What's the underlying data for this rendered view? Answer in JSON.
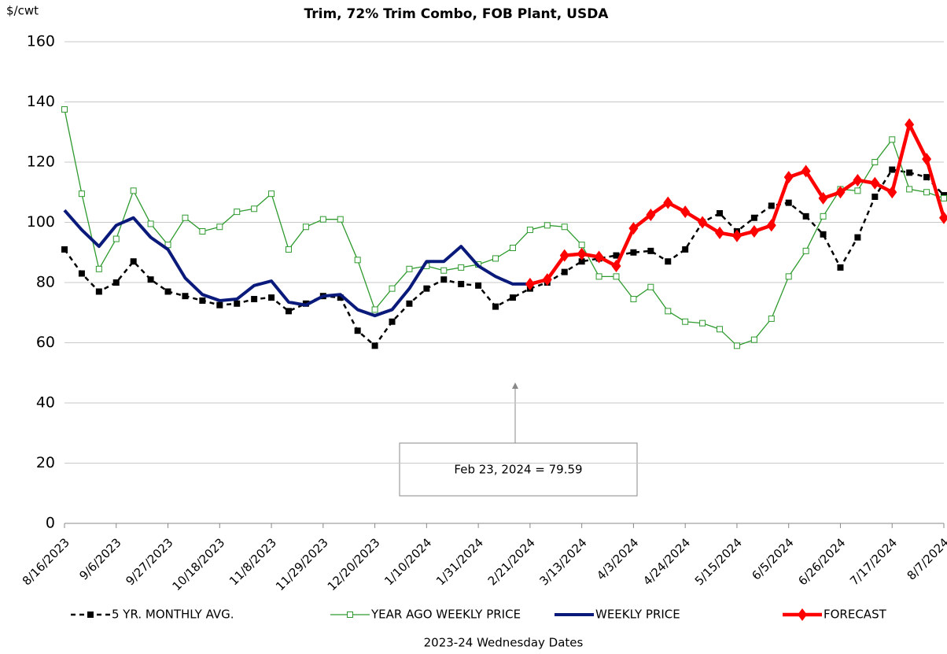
{
  "chart_data": {
    "type": "line",
    "title": "Trim, 72% Trim Combo, FOB Plant, USDA",
    "y_label": "$/cwt",
    "x_label": "2023-24 Wednesday Dates",
    "annotation": "Feb 23, 2024  = 79.59",
    "categories": [
      "8/16/2023",
      null,
      null,
      "9/6/2023",
      null,
      null,
      "9/27/2023",
      null,
      null,
      "10/18/2023",
      null,
      null,
      "11/8/2023",
      null,
      null,
      "11/29/2023",
      null,
      null,
      "12/20/2023",
      null,
      null,
      "1/10/2024",
      null,
      null,
      "1/31/2024",
      null,
      null,
      "2/21/2024",
      null,
      null,
      "3/13/2024",
      null,
      null,
      "4/3/2024",
      null,
      null,
      "4/24/2024",
      null,
      null,
      "5/15/2024",
      null,
      null,
      "6/5/2024",
      null,
      null,
      "6/26/2024",
      null,
      null,
      "7/17/2024",
      null,
      null,
      "8/7/2024"
    ],
    "series": [
      {
        "name": "5 YR. MONTHLY AVG.",
        "color": "#000000",
        "values": [
          91,
          83,
          77,
          80,
          87,
          81,
          77,
          75.5,
          74,
          72.5,
          73,
          74.5,
          75,
          70.5,
          73,
          75.5,
          75,
          64,
          59,
          67,
          73,
          78,
          81,
          79.5,
          79,
          72,
          75,
          78,
          80,
          83.5,
          87,
          88,
          89,
          90,
          90.5,
          87,
          91,
          100,
          103,
          97,
          101.5,
          105.5,
          106.5,
          102,
          96,
          85,
          95,
          108.5,
          117.5,
          116.5,
          115,
          109
        ]
      },
      {
        "name": "YEAR AGO WEEKLY PRICE",
        "color": "#2e9a2e",
        "values": [
          137.5,
          109.5,
          84.5,
          94.5,
          110.5,
          99.5,
          92.5,
          101.5,
          97,
          98.5,
          103.5,
          104.5,
          109.5,
          91,
          98.5,
          101,
          101,
          87.5,
          71,
          78,
          84.5,
          85.5,
          84,
          85,
          86,
          88,
          91.5,
          97.5,
          99,
          98.5,
          92.5,
          82,
          82,
          74.5,
          78.5,
          70.5,
          67,
          66.5,
          64.5,
          59,
          61,
          68,
          82,
          90.5,
          102,
          111,
          110.5,
          120,
          127.5,
          111,
          110,
          108
        ]
      },
      {
        "name": "WEEKLY PRICE",
        "color": "#0a1a7a",
        "values": [
          104,
          97.5,
          92,
          99,
          101.5,
          95,
          91,
          81.5,
          76,
          74,
          74.5,
          79,
          80.5,
          73.5,
          72.5,
          75.5,
          76,
          71,
          69,
          71,
          78,
          87,
          87,
          92,
          85.5,
          82,
          79.5,
          79.5,
          null,
          null,
          null,
          null,
          null,
          null,
          null,
          null,
          null,
          null,
          null,
          null,
          null,
          null,
          null,
          null,
          null,
          null,
          null,
          null,
          null,
          null,
          null,
          null
        ]
      },
      {
        "name": "FORECAST",
        "color": "#ff0000",
        "values": [
          null,
          null,
          null,
          null,
          null,
          null,
          null,
          null,
          null,
          null,
          null,
          null,
          null,
          null,
          null,
          null,
          null,
          null,
          null,
          null,
          null,
          null,
          null,
          null,
          null,
          null,
          null,
          79.5,
          81,
          89,
          89.5,
          88.5,
          85.5,
          98,
          102.5,
          106.5,
          103.5,
          100,
          96.5,
          95.5,
          97,
          99,
          115,
          117,
          108,
          110,
          114,
          113,
          110,
          132.5,
          121,
          101.5
        ]
      }
    ],
    "ylim": [
      0,
      160
    ],
    "yticks": [
      0,
      20,
      40,
      60,
      80,
      100,
      120,
      140,
      160
    ],
    "grid": true
  }
}
